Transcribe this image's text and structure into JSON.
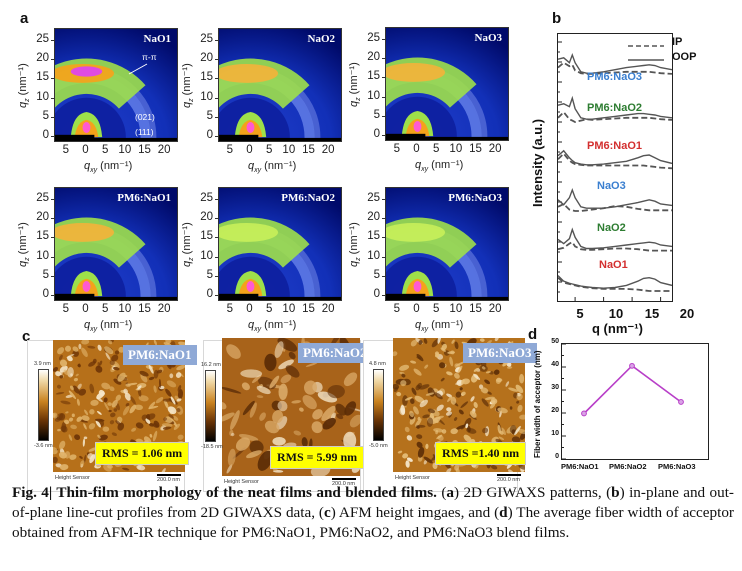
{
  "figure": {
    "panel_letters": {
      "a": "a",
      "b": "b",
      "c": "c",
      "d": "d"
    }
  },
  "panel_a": {
    "y_ticks": [
      "25",
      "20",
      "15",
      "10",
      "5",
      "0"
    ],
    "x_ticks": [
      "5",
      "0",
      "5",
      "10",
      "15",
      "20"
    ],
    "y_label": "q",
    "y_label_sub": "z",
    "y_label_unit": " (nm⁻¹)",
    "x_label": "q",
    "x_label_sub": "xy",
    "x_label_unit": " (nm⁻¹)",
    "annotations": {
      "pi_pi": "π-π",
      "peak_021": "(021)",
      "peak_111": "(111)"
    },
    "patterns": [
      {
        "label": "NaO1"
      },
      {
        "label": "NaO2"
      },
      {
        "label": "NaO3"
      },
      {
        "label": "PM6:NaO1"
      },
      {
        "label": "PM6:NaO2"
      },
      {
        "label": "PM6:NaO3"
      }
    ]
  },
  "chart_data": [
    {
      "type": "line",
      "title": "",
      "panel": "b",
      "xlabel": "q (nm⁻¹)",
      "ylabel": "Intensity (a.u.)",
      "xlim": [
        2,
        22
      ],
      "x_ticks": [
        "5",
        "10",
        "15",
        "20"
      ],
      "legend": {
        "placement": "top-right",
        "entries": [
          "IP",
          "OOP"
        ]
      },
      "samples_top_to_bottom": [
        {
          "name": "PM6:NaO3",
          "color": "#3a7fd0"
        },
        {
          "name": "PM6:NaO2",
          "color": "#2e7d32"
        },
        {
          "name": "PM6:NaO1",
          "color": "#d32f2f"
        },
        {
          "name": "NaO3",
          "color": "#3a7fd0"
        },
        {
          "name": "NaO2",
          "color": "#2e7d32"
        },
        {
          "name": "NaO1",
          "color": "#d32f2f"
        }
      ],
      "x": [
        2,
        3,
        4,
        4.5,
        5,
        6,
        7,
        8,
        10,
        12,
        14,
        16,
        17,
        18,
        19,
        20,
        22
      ],
      "series": [
        {
          "name": "PM6:NaO3 OOP",
          "values": [
            0.6,
            0.62,
            0.55,
            0.66,
            0.55,
            0.42,
            0.4,
            0.4,
            0.42,
            0.45,
            0.48,
            0.5,
            0.51,
            0.52,
            0.51,
            0.48,
            0.45
          ]
        },
        {
          "name": "PM6:NaO3 IP",
          "values": [
            0.48,
            0.55,
            0.5,
            0.52,
            0.44,
            0.4,
            0.39,
            0.39,
            0.4,
            0.41,
            0.42,
            0.42,
            0.42,
            0.42,
            0.41,
            0.4,
            0.39
          ]
        },
        {
          "name": "PM6:NaO2 OOP",
          "values": [
            0.6,
            0.62,
            0.58,
            0.7,
            0.55,
            0.42,
            0.4,
            0.4,
            0.42,
            0.44,
            0.46,
            0.48,
            0.48,
            0.47,
            0.46,
            0.44,
            0.42
          ]
        },
        {
          "name": "PM6:NaO2 IP",
          "values": [
            0.42,
            0.5,
            0.4,
            0.38,
            0.36,
            0.38,
            0.4,
            0.39,
            0.4,
            0.41,
            0.42,
            0.42,
            0.42,
            0.42,
            0.41,
            0.4,
            0.39
          ]
        },
        {
          "name": "PM6:NaO1 OOP",
          "values": [
            0.55,
            0.62,
            0.52,
            0.48,
            0.45,
            0.43,
            0.42,
            0.42,
            0.43,
            0.45,
            0.47,
            0.52,
            0.55,
            0.56,
            0.52,
            0.48,
            0.44
          ]
        },
        {
          "name": "PM6:NaO1 IP",
          "values": [
            0.5,
            0.58,
            0.48,
            0.45,
            0.43,
            0.42,
            0.41,
            0.41,
            0.41,
            0.41,
            0.41,
            0.41,
            0.41,
            0.4,
            0.39,
            0.38,
            0.37
          ]
        },
        {
          "name": "NaO3 OOP",
          "values": [
            0.52,
            0.45,
            0.55,
            0.66,
            0.55,
            0.42,
            0.4,
            0.4,
            0.4,
            0.42,
            0.45,
            0.48,
            0.5,
            0.52,
            0.5,
            0.46,
            0.44
          ]
        },
        {
          "name": "NaO3 IP",
          "values": [
            0.42,
            0.46,
            0.38,
            0.37,
            0.36,
            0.36,
            0.37,
            0.38,
            0.4,
            0.43,
            0.42,
            0.39,
            0.38,
            0.37,
            0.37,
            0.37,
            0.37
          ]
        },
        {
          "name": "NaO2 OOP",
          "values": [
            0.54,
            0.48,
            0.55,
            0.68,
            0.57,
            0.44,
            0.41,
            0.41,
            0.42,
            0.44,
            0.46,
            0.48,
            0.49,
            0.5,
            0.49,
            0.46,
            0.44
          ]
        },
        {
          "name": "NaO2 IP",
          "values": [
            0.4,
            0.42,
            0.48,
            0.5,
            0.44,
            0.4,
            0.39,
            0.39,
            0.4,
            0.41,
            0.41,
            0.4,
            0.39,
            0.38,
            0.38,
            0.38,
            0.38
          ]
        },
        {
          "name": "NaO1 OOP",
          "values": [
            0.58,
            0.5,
            0.47,
            0.46,
            0.45,
            0.43,
            0.42,
            0.41,
            0.4,
            0.41,
            0.44,
            0.5,
            0.54,
            0.55,
            0.53,
            0.48,
            0.44
          ]
        },
        {
          "name": "NaO1 IP",
          "values": [
            0.55,
            0.48,
            0.46,
            0.45,
            0.44,
            0.42,
            0.41,
            0.4,
            0.39,
            0.39,
            0.39,
            0.38,
            0.37,
            0.36,
            0.36,
            0.36,
            0.36
          ]
        }
      ]
    },
    {
      "type": "line",
      "title": "",
      "panel": "d",
      "xlabel": "",
      "ylabel": "Fiber width of acceptor (nm)",
      "ylim": [
        0,
        50
      ],
      "y_ticks": [
        "0",
        "10",
        "20",
        "30",
        "40",
        "50"
      ],
      "categories": [
        "PM6:NaO1",
        "PM6:NaO2",
        "PM6:NaO3"
      ],
      "values": [
        19.8,
        40.5,
        24.8
      ],
      "color": "#b83fc8",
      "grid": false
    }
  ],
  "panel_c": {
    "images": [
      {
        "tag": "PM6:NaO1",
        "rms": "RMS = 1.06 nm",
        "cbar_max": "3.9 nm",
        "cbar_min": "-3.6 nm",
        "footer": "Height Sensor",
        "scale": "200.0 nm"
      },
      {
        "tag": "PM6:NaO2",
        "rms": "RMS = 5.99 nm",
        "cbar_max": "16.2 nm",
        "cbar_min": "-18.5 nm",
        "footer": "Height Sensor",
        "scale": "200.0 nm"
      },
      {
        "tag": "PM6:NaO3",
        "rms": "RMS =1.40 nm",
        "cbar_max": "4.8 nm",
        "cbar_min": "-5.0 nm",
        "footer": "Height Sensor",
        "scale": "200.0 nm"
      }
    ]
  },
  "caption": {
    "fig_label": "Fig. 4| Thin-film morphology of the neat films and blended films.",
    "p1": " (",
    "a": "a",
    "p2": ") 2D GIWAXS patterns, (",
    "b": "b",
    "p3": ") in-plane and out-of-plane line-cut profiles from 2D GIWAXS data, (",
    "c": "c",
    "p4": ") AFM height imgaes, and (",
    "d": "d",
    "p5": ") The average fiber width of acceptor obtained from AFM-IR technique for PM6:NaO1, PM6:NaO2, and PM6:NaO3 blend films."
  }
}
